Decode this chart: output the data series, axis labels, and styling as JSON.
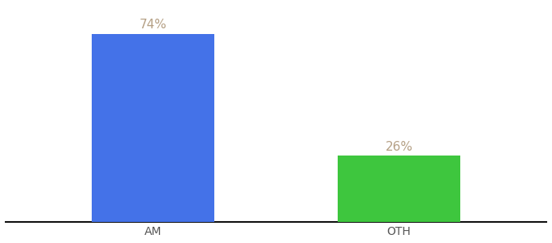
{
  "categories": [
    "AM",
    "OTH"
  ],
  "values": [
    74,
    26
  ],
  "bar_colors": [
    "#4472e8",
    "#3ec63e"
  ],
  "label_texts": [
    "74%",
    "26%"
  ],
  "label_color": "#b5a085",
  "label_fontsize": 11,
  "tick_fontsize": 10,
  "tick_color": "#555555",
  "background_color": "#ffffff",
  "bar_width": 0.5,
  "ylim": [
    0,
    85
  ],
  "spine_color": "#111111",
  "xlim": [
    -0.6,
    1.6
  ]
}
